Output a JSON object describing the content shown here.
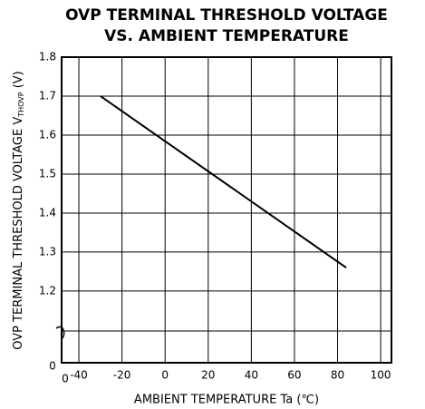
{
  "chart_data": {
    "type": "line",
    "title": [
      "OVP TERMINAL THRESHOLD VOLTAGE",
      "VS. AMBIENT TEMPERATURE"
    ],
    "x_label": "AMBIENT TEMPERATURE Ta (℃)",
    "y_label": {
      "main": "OVP TERMINAL THRESHOLD VOLTAGE V",
      "sub": "THOVP",
      "unit": " (V)"
    },
    "x": [
      -30,
      84
    ],
    "series": [
      {
        "name": "VTHOVP",
        "color": "#000000",
        "values": [
          1.7,
          1.26
        ]
      }
    ],
    "xlim": [
      -48,
      105
    ],
    "xticks": [
      -40,
      -20,
      0,
      20,
      40,
      60,
      80,
      100
    ],
    "ylim": [
      1.016,
      1.8
    ],
    "yticks": [
      1.2,
      1.3,
      1.4,
      1.5,
      1.6,
      1.7,
      1.8
    ],
    "axis_break_labels": {
      "x": "0",
      "y": "0"
    },
    "grid": true
  }
}
